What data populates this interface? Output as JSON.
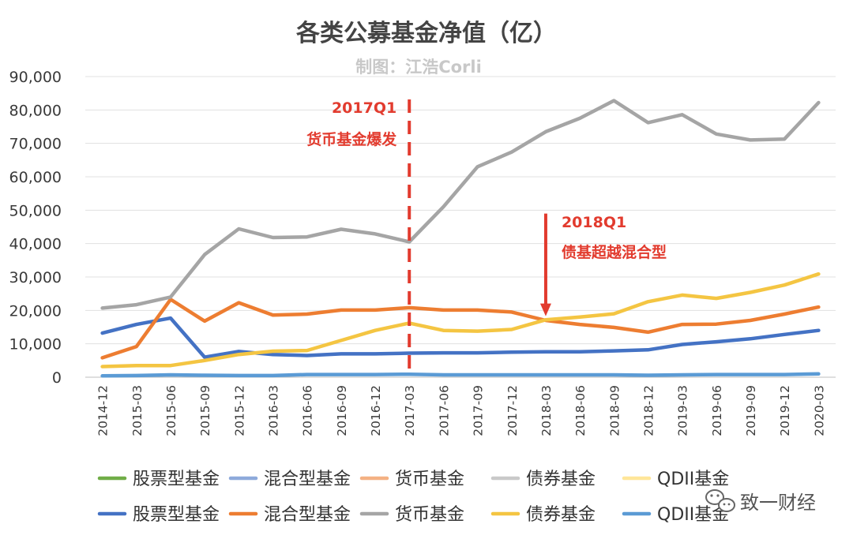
{
  "chart_data": {
    "type": "line",
    "title": "各类公募基金净值（亿）",
    "subtitle": "制图：江浩Corli",
    "ylim": [
      0,
      90000
    ],
    "yticks": [
      "0",
      "10,000",
      "20,000",
      "30,000",
      "40,000",
      "50,000",
      "60,000",
      "70,000",
      "80,000",
      "90,000"
    ],
    "grid": true,
    "categories": [
      "2014-12",
      "2015-03",
      "2015-06",
      "2015-09",
      "2015-12",
      "2016-03",
      "2016-06",
      "2016-09",
      "2016-12",
      "2017-03",
      "2017-06",
      "2017-09",
      "2017-12",
      "2018-03",
      "2018-06",
      "2018-09",
      "2018-12",
      "2019-03",
      "2019-06",
      "2019-09",
      "2019-12",
      "2020-03"
    ],
    "series": [
      {
        "name": "股票型基金",
        "color": "#4472c4",
        "values": [
          13200,
          15800,
          17700,
          6000,
          7700,
          6800,
          6500,
          7000,
          7000,
          7200,
          7300,
          7300,
          7500,
          7600,
          7600,
          7900,
          8200,
          9800,
          10600,
          11500,
          12800,
          14000
        ]
      },
      {
        "name": "混合型基金",
        "color": "#ed7d31",
        "values": [
          5800,
          9200,
          23300,
          16800,
          22300,
          18600,
          18900,
          20100,
          20100,
          20800,
          20100,
          20100,
          19500,
          17000,
          15800,
          14900,
          13500,
          15800,
          15900,
          17000,
          18900,
          21000
        ]
      },
      {
        "name": "货币基金",
        "color": "#a5a5a5",
        "values": [
          20700,
          21700,
          24000,
          36700,
          44400,
          41800,
          42000,
          44300,
          42900,
          40500,
          51000,
          63000,
          67400,
          73500,
          77500,
          82800,
          76200,
          78600,
          72800,
          71000,
          71300,
          82200
        ]
      },
      {
        "name": "债券基金",
        "color": "#f4c542",
        "values": [
          3200,
          3500,
          3500,
          5000,
          6800,
          7800,
          8000,
          11000,
          14000,
          16200,
          14000,
          13800,
          14300,
          17200,
          18000,
          19000,
          22600,
          24600,
          23600,
          25400,
          27600,
          30900
        ]
      },
      {
        "name": "QDII基金",
        "color": "#5b9bd5",
        "values": [
          400,
          500,
          700,
          600,
          500,
          500,
          800,
          800,
          800,
          900,
          700,
          700,
          700,
          700,
          700,
          700,
          600,
          700,
          800,
          800,
          800,
          1000
        ]
      }
    ],
    "legend": {
      "placement": "bottom",
      "row1": [
        {
          "name": "股票型基金",
          "color": "#70ad47"
        },
        {
          "name": "混合型基金",
          "color": "#8eaadb"
        },
        {
          "name": "货币基金",
          "color": "#f4b183"
        },
        {
          "name": "债券基金",
          "color": "#c9c9c9"
        },
        {
          "name": "QDII基金",
          "color": "#ffe699"
        }
      ],
      "row2": [
        {
          "name": "股票型基金",
          "color": "#4472c4"
        },
        {
          "name": "混合型基金",
          "color": "#ed7d31"
        },
        {
          "name": "货币基金",
          "color": "#a5a5a5"
        },
        {
          "name": "债券基金",
          "color": "#f4c542"
        },
        {
          "name": "QDII基金",
          "color": "#5b9bd5"
        }
      ]
    },
    "annotations": [
      {
        "type": "vline",
        "at": "2017-03",
        "color": "#e23b2e",
        "lines": [
          "2017Q1",
          "货币基金爆发"
        ]
      },
      {
        "type": "arrow",
        "at": "2018-03",
        "color": "#e23b2e",
        "from": 49000,
        "to": 19000,
        "lines": [
          "2018Q1",
          "债基超越混合型"
        ]
      }
    ]
  },
  "watermark": {
    "text": "致一财经"
  }
}
